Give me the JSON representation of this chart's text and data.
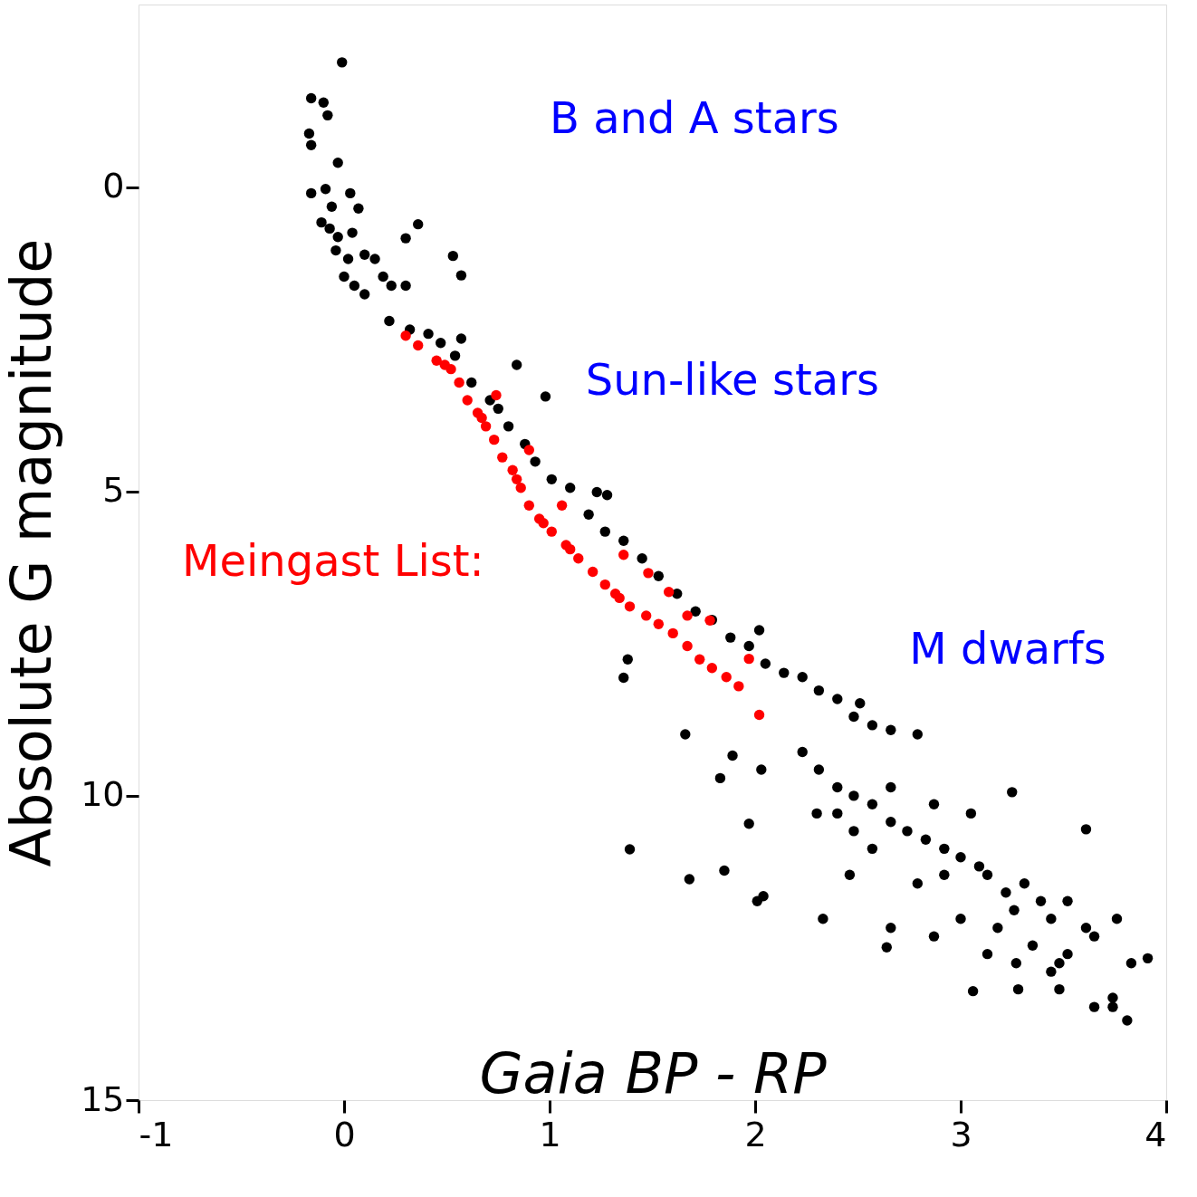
{
  "chart_data": {
    "type": "scatter",
    "xlabel": "Gaia BP - RP",
    "ylabel": "Absolute G magnitude",
    "xlim": [
      -1,
      4
    ],
    "ylim": [
      15,
      -3
    ],
    "xticks": [
      -1,
      0,
      1,
      2,
      3,
      4
    ],
    "yticks": [
      0,
      5,
      10,
      15
    ],
    "marker": "circle",
    "legend": "left",
    "annotations": [
      "B and A stars",
      "Sun-like stars",
      "M dwarfs"
    ],
    "series": [
      {
        "color": "#000000",
        "x": [
          -0.01,
          -0.16,
          -0.1,
          -0.08,
          -0.17,
          -0.16,
          -0.03,
          -0.09,
          -0.16,
          0.03,
          -0.06,
          0.07,
          -0.11,
          -0.07,
          -0.03,
          0.04,
          -0.04,
          0.02,
          0.0,
          0.1,
          0.15,
          0.05,
          0.1,
          0.19,
          0.23,
          0.3,
          0.36,
          0.3,
          0.53,
          0.57,
          0.22,
          0.32,
          0.41,
          0.47,
          0.57,
          0.54,
          0.84,
          0.98,
          0.62,
          0.71,
          0.75,
          0.8,
          0.88,
          0.93,
          1.01,
          1.1,
          1.23,
          1.28,
          1.19,
          1.27,
          1.36,
          1.45,
          1.53,
          1.62,
          1.71,
          1.79,
          2.02,
          1.88,
          1.97,
          1.38,
          1.36,
          2.05,
          2.14,
          2.23,
          2.31,
          2.4,
          2.51,
          2.48,
          2.57,
          2.66,
          2.79,
          1.66,
          1.89,
          1.83,
          2.03,
          2.23,
          2.31,
          2.4,
          2.48,
          2.57,
          2.3,
          2.66,
          2.74,
          2.83,
          2.92,
          3.0,
          3.09,
          3.25,
          3.61,
          1.97,
          1.39,
          1.68,
          1.85,
          2.01,
          2.04,
          2.33,
          2.46,
          2.64,
          2.66,
          2.87,
          3.0,
          3.18,
          3.26,
          3.35,
          3.44,
          3.52,
          3.65,
          3.76,
          3.06,
          3.27,
          3.48,
          3.65,
          3.74,
          3.83,
          3.91,
          3.74,
          3.81,
          3.48,
          2.66,
          2.87,
          3.05,
          3.13,
          3.22,
          2.92,
          2.79,
          2.57,
          2.48,
          2.4,
          3.31,
          3.39,
          3.52,
          3.61,
          3.13,
          3.28,
          3.44
        ],
        "values": [
          -2.05,
          -1.46,
          -1.39,
          -1.18,
          -0.88,
          -0.69,
          -0.4,
          0.03,
          0.1,
          0.1,
          0.32,
          0.35,
          0.58,
          0.68,
          0.82,
          0.75,
          1.04,
          1.18,
          1.47,
          1.11,
          1.18,
          1.62,
          1.76,
          1.47,
          1.62,
          1.62,
          0.61,
          0.84,
          1.13,
          1.45,
          2.2,
          2.34,
          2.41,
          2.56,
          2.49,
          2.77,
          2.92,
          3.44,
          3.21,
          3.5,
          3.64,
          3.93,
          4.22,
          4.51,
          4.8,
          4.94,
          5.01,
          5.06,
          5.38,
          5.66,
          5.81,
          6.1,
          6.39,
          6.68,
          6.97,
          7.11,
          7.28,
          7.4,
          7.54,
          7.76,
          8.06,
          7.83,
          7.98,
          8.05,
          8.27,
          8.41,
          8.48,
          8.7,
          8.84,
          8.92,
          8.99,
          8.99,
          9.34,
          9.71,
          9.57,
          9.28,
          9.57,
          9.86,
          10.0,
          10.14,
          10.29,
          10.43,
          10.58,
          10.72,
          10.87,
          11.01,
          11.16,
          9.94,
          10.55,
          10.46,
          10.88,
          11.37,
          11.23,
          11.73,
          11.65,
          12.02,
          11.3,
          12.49,
          12.17,
          12.31,
          12.02,
          12.17,
          11.88,
          12.46,
          12.02,
          12.6,
          12.31,
          12.02,
          13.21,
          12.75,
          13.18,
          13.47,
          13.32,
          12.75,
          12.67,
          13.47,
          13.69,
          12.75,
          9.86,
          10.14,
          10.29,
          11.3,
          11.59,
          11.3,
          11.44,
          10.87,
          10.58,
          10.29,
          11.44,
          11.73,
          11.73,
          12.17,
          12.6,
          13.18,
          12.89
        ]
      },
      {
        "name": "Meingast List:",
        "color": "#ff0000",
        "x": [
          0.3,
          0.36,
          0.45,
          0.52,
          0.56,
          0.6,
          0.65,
          0.69,
          0.74,
          0.73,
          0.77,
          0.82,
          0.9,
          0.86,
          0.9,
          0.95,
          1.06,
          1.01,
          1.08,
          1.14,
          1.21,
          1.27,
          1.36,
          1.34,
          1.48,
          1.39,
          1.47,
          1.58,
          1.53,
          1.6,
          1.67,
          1.67,
          1.78,
          1.73,
          1.79,
          1.86,
          1.97,
          1.92,
          2.02,
          0.49,
          0.67,
          0.84,
          0.97,
          1.1,
          1.32
        ],
        "values": [
          2.44,
          2.6,
          2.85,
          2.99,
          3.21,
          3.5,
          3.71,
          3.93,
          3.42,
          4.15,
          4.44,
          4.65,
          4.32,
          4.94,
          5.23,
          5.45,
          5.23,
          5.66,
          5.88,
          6.1,
          6.32,
          6.53,
          6.04,
          6.75,
          6.34,
          6.89,
          7.04,
          6.65,
          7.18,
          7.33,
          7.04,
          7.54,
          7.12,
          7.76,
          7.9,
          8.05,
          7.75,
          8.2,
          8.67,
          2.92,
          3.79,
          4.8,
          5.52,
          5.95,
          6.68
        ]
      }
    ]
  }
}
